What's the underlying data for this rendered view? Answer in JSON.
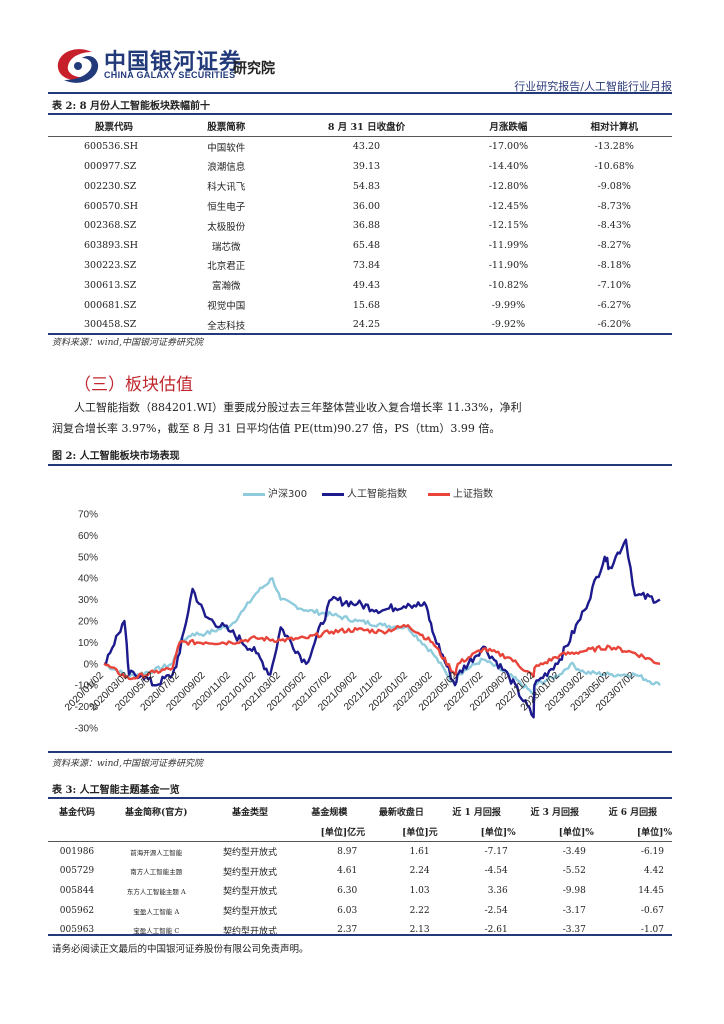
{
  "header": {
    "brand_cn": "中国银河证券",
    "brand_en": "CHINA GALAXY SECURITIES",
    "institute": "研究院",
    "report_type": "行业研究报告/人工智能行业月报"
  },
  "table2": {
    "title": "表 2: 8 月份人工智能板块跌幅前十",
    "columns": [
      "股票代码",
      "股票简称",
      "8 月 31 日收盘价",
      "月涨跌幅",
      "相对计算机"
    ],
    "rows": [
      [
        "600536.SH",
        "中国软件",
        "43.20",
        "-17.00%",
        "-13.28%"
      ],
      [
        "000977.SZ",
        "浪潮信息",
        "39.13",
        "-14.40%",
        "-10.68%"
      ],
      [
        "002230.SZ",
        "科大讯飞",
        "54.83",
        "-12.80%",
        "-9.08%"
      ],
      [
        "600570.SH",
        "恒生电子",
        "36.00",
        "-12.45%",
        "-8.73%"
      ],
      [
        "002368.SZ",
        "太极股份",
        "36.88",
        "-12.15%",
        "-8.43%"
      ],
      [
        "603893.SH",
        "瑞芯微",
        "65.48",
        "-11.99%",
        "-8.27%"
      ],
      [
        "300223.SZ",
        "北京君正",
        "73.84",
        "-11.90%",
        "-8.18%"
      ],
      [
        "300613.SZ",
        "富瀚微",
        "49.43",
        "-10.82%",
        "-7.10%"
      ],
      [
        "000681.SZ",
        "视觉中国",
        "15.68",
        "-9.99%",
        "-6.27%"
      ],
      [
        "300458.SZ",
        "全志科技",
        "24.25",
        "-9.92%",
        "-6.20%"
      ]
    ],
    "source": "资料来源：wind,中国银河证券研究院"
  },
  "section3": {
    "title": "（三）板块估值",
    "para_line1": "人工智能指数（884201.WI）重要成分股过去三年整体营业收入复合增长率 11.33%，净利",
    "para_line2": "润复合增长率 3.97%，截至 8 月 31 日平均估值 PE(ttm)90.27 倍，PS（ttm）3.99 倍。"
  },
  "figure2": {
    "title": "图 2: 人工智能板块市场表现",
    "source": "资料来源：wind,中国银河证券研究院"
  },
  "chart_data": {
    "type": "line",
    "title": "",
    "ylabel": "",
    "xlabel": "",
    "ylim": [
      -30,
      70
    ],
    "yticks": [
      "70%",
      "60%",
      "50%",
      "40%",
      "30%",
      "20%",
      "10%",
      "0%",
      "-10%",
      "-20%",
      "-30%"
    ],
    "xticks": [
      "2020/01/02",
      "2020/03/02",
      "2020/05/02",
      "2020/07/02",
      "2020/09/02",
      "2020/11/02",
      "2021/01/02",
      "2021/03/02",
      "2021/05/02",
      "2021/07/02",
      "2021/09/02",
      "2021/11/02",
      "2022/01/02",
      "2022/03/02",
      "2022/05/02",
      "2022/07/02",
      "2022/09/02",
      "2022/11/02",
      "2023/01/02",
      "2023/03/02",
      "2023/05/02",
      "2023/07/02"
    ],
    "legend_position": "top-center",
    "grid": false,
    "series": [
      {
        "name": "沪深300",
        "color": "#8ecbdc",
        "x": [
          "2020/01/02",
          "2020/03/02",
          "2020/05/02",
          "2020/06/15",
          "2020/07/02",
          "2020/08/02",
          "2020/09/02",
          "2020/11/02",
          "2020/12/02",
          "2021/01/02",
          "2021/02/10",
          "2021/03/02",
          "2021/05/02",
          "2021/07/02",
          "2021/09/02",
          "2021/11/02",
          "2022/01/02",
          "2022/03/02",
          "2022/04/25",
          "2022/05/02",
          "2022/07/02",
          "2022/09/02",
          "2022/10/31",
          "2022/11/02",
          "2023/01/02",
          "2023/01/28",
          "2023/03/02",
          "2023/05/02",
          "2023/07/02",
          "2023/08/31"
        ],
        "values": [
          0,
          -6,
          -3,
          0,
          10,
          14,
          14,
          18,
          25,
          33,
          40,
          30,
          25,
          23,
          20,
          18,
          17,
          5,
          -10,
          -5,
          2,
          -5,
          -14,
          -10,
          -5,
          0,
          -4,
          -5,
          -5,
          -10
        ]
      },
      {
        "name": "人工智能指数",
        "color": "#1c1a8c",
        "x": [
          "2020/01/02",
          "2020/02/20",
          "2020/03/02",
          "2020/04/02",
          "2020/05/02",
          "2020/06/15",
          "2020/07/02",
          "2020/08/02",
          "2020/09/02",
          "2020/11/02",
          "2021/01/02",
          "2021/02/05",
          "2021/03/02",
          "2021/05/02",
          "2021/07/02",
          "2021/09/02",
          "2021/11/02",
          "2022/01/02",
          "2022/02/15",
          "2022/03/02",
          "2022/04/25",
          "2022/05/02",
          "2022/07/02",
          "2022/09/02",
          "2022/10/31",
          "2022/11/02",
          "2023/01/02",
          "2023/03/02",
          "2023/04/20",
          "2023/05/02",
          "2023/06/10",
          "2023/07/02",
          "2023/08/31"
        ],
        "values": [
          0,
          20,
          -5,
          -5,
          -10,
          -5,
          5,
          35,
          22,
          15,
          5,
          -5,
          17,
          0,
          30,
          28,
          25,
          28,
          27,
          15,
          -10,
          -5,
          8,
          -6,
          -25,
          -10,
          2,
          25,
          50,
          45,
          58,
          32,
          30
        ]
      },
      {
        "name": "上证指数",
        "color": "#e8443a",
        "x": [
          "2020/01/02",
          "2020/03/02",
          "2020/05/02",
          "2020/06/15",
          "2020/07/02",
          "2020/09/02",
          "2020/11/02",
          "2021/01/02",
          "2021/03/02",
          "2021/05/02",
          "2021/07/02",
          "2021/09/02",
          "2021/11/02",
          "2022/01/02",
          "2022/03/02",
          "2022/04/25",
          "2022/05/02",
          "2022/07/02",
          "2022/09/02",
          "2022/10/31",
          "2022/11/02",
          "2023/01/02",
          "2023/03/02",
          "2023/05/02",
          "2023/07/02",
          "2023/08/31"
        ],
        "values": [
          0,
          -7,
          -4,
          -2,
          10,
          10,
          10,
          12,
          11,
          12,
          15,
          16,
          15,
          18,
          10,
          -5,
          0,
          7,
          3,
          -6,
          -2,
          4,
          6,
          8,
          5,
          0
        ]
      }
    ]
  },
  "table3": {
    "title": "表 3: 人工智能主题基金一览",
    "columns": [
      {
        "l1": "基金代码",
        "l2": ""
      },
      {
        "l1": "基金简称(官方)",
        "l2": ""
      },
      {
        "l1": "基金类型",
        "l2": ""
      },
      {
        "l1": "基金规模",
        "l2": "[单位]亿元"
      },
      {
        "l1": "最新收盘日",
        "l2": "[单位]元"
      },
      {
        "l1": "近 1 月回报",
        "l2": "[单位]%"
      },
      {
        "l1": "近 3 月回报",
        "l2": "[单位]%"
      },
      {
        "l1": "近 6 月回报",
        "l2": "[单位]%"
      }
    ],
    "rows": [
      [
        "001986",
        "前海开源人工智能",
        "契约型开放式",
        "8.97",
        "1.61",
        "-7.17",
        "-3.49",
        "-6.19"
      ],
      [
        "005729",
        "南方人工智能主题",
        "契约型开放式",
        "4.61",
        "2.24",
        "-4.54",
        "-5.52",
        "4.42"
      ],
      [
        "005844",
        "东方人工智能主题 A",
        "契约型开放式",
        "6.30",
        "1.03",
        "3.36",
        "-9.98",
        "14.45"
      ],
      [
        "005962",
        "宝盈人工智能 A",
        "契约型开放式",
        "6.03",
        "2.22",
        "-2.54",
        "-3.17",
        "-0.67"
      ],
      [
        "005963",
        "宝盈人工智能 C",
        "契约型开放式",
        "2.37",
        "2.13",
        "-2.61",
        "-3.37",
        "-1.07"
      ]
    ]
  },
  "footer": "请务必阅读正文最后的中国银河证券股份有限公司免责声明。"
}
